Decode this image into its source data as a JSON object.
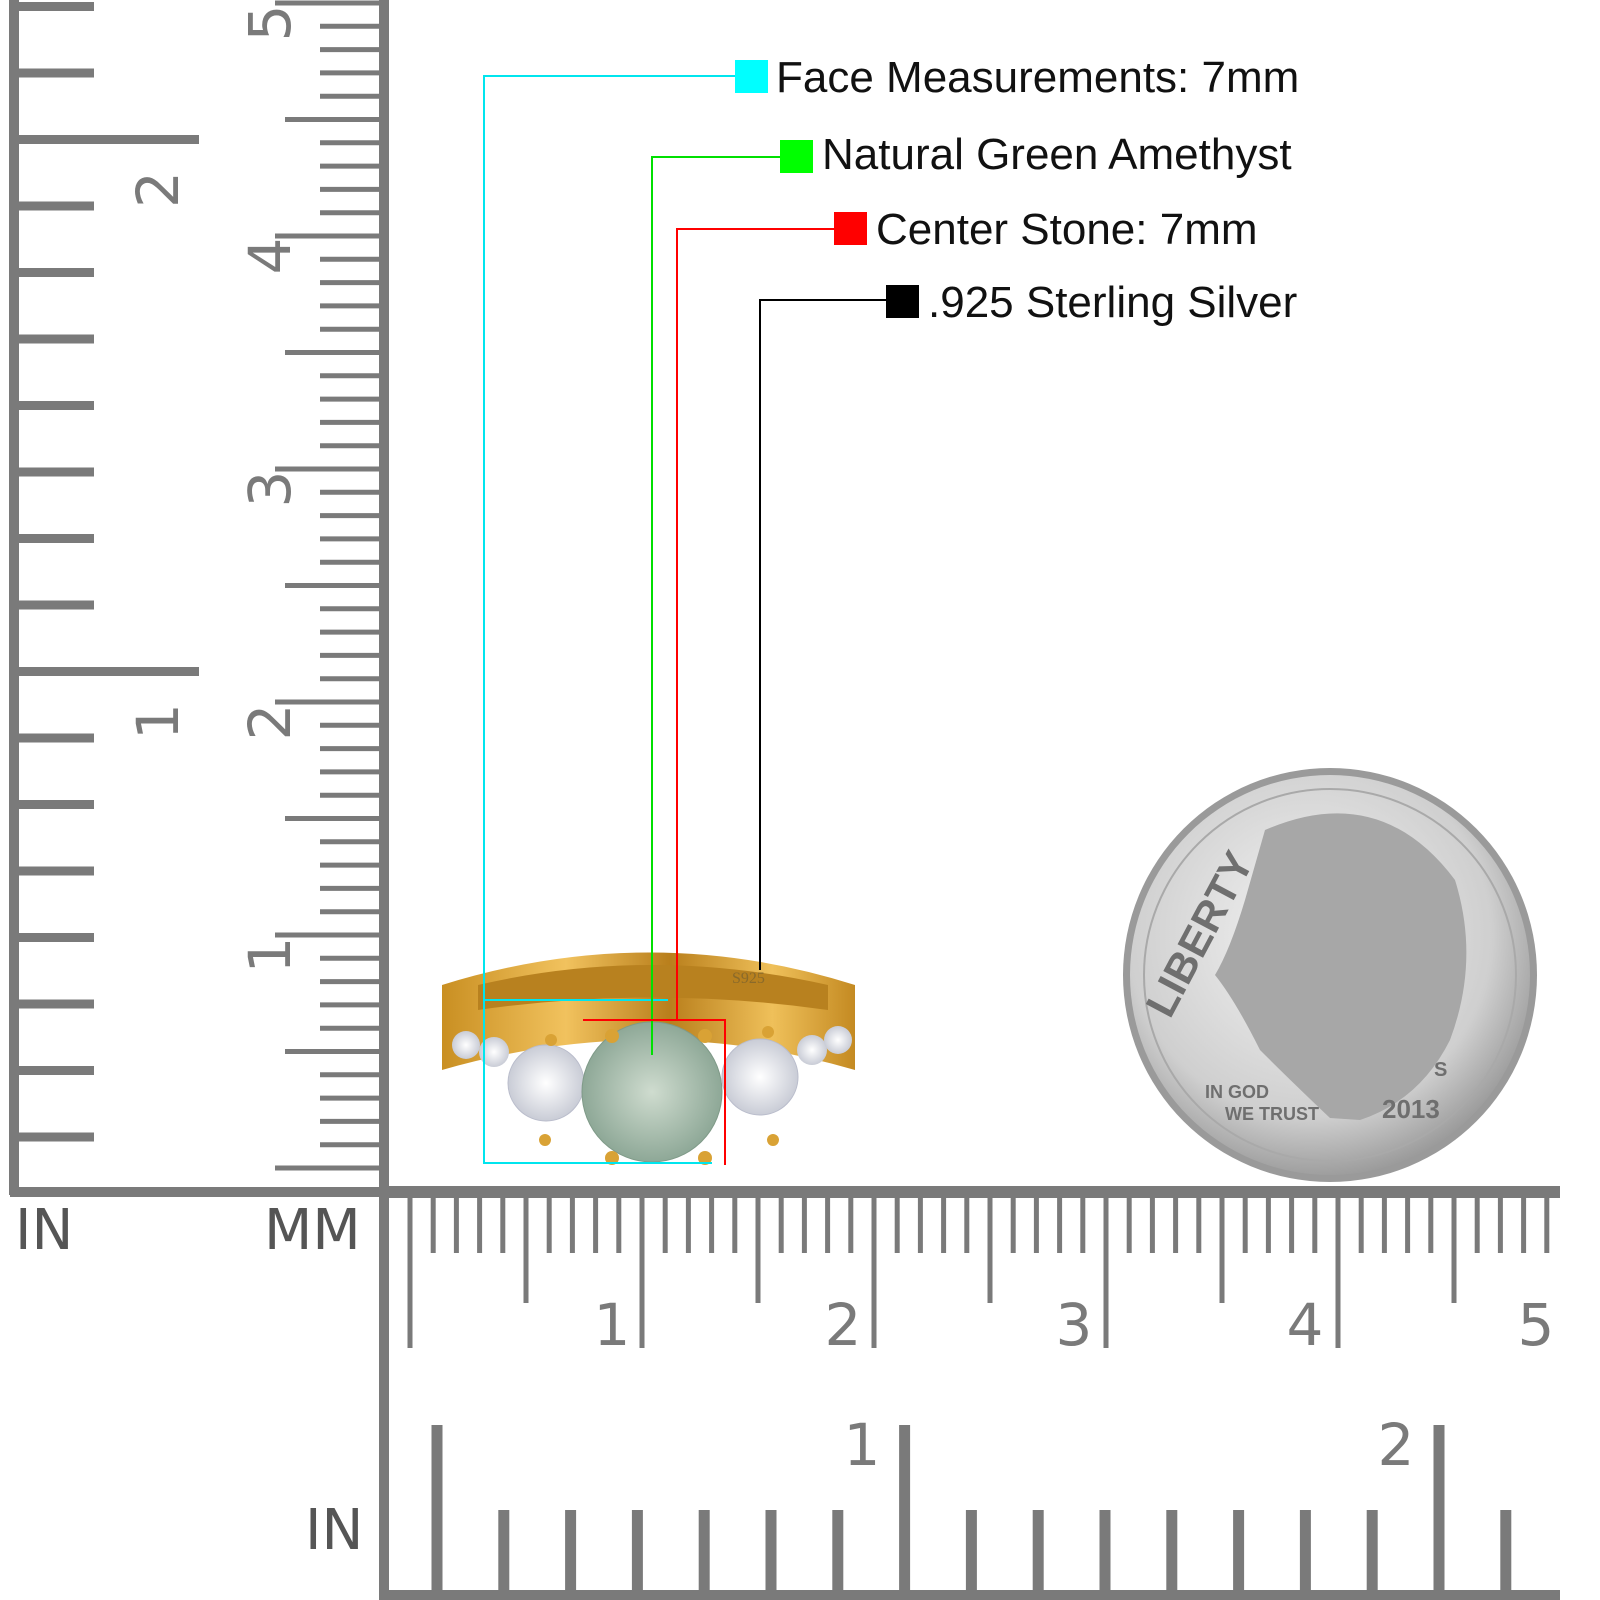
{
  "legend": [
    {
      "label": "Face Measurements: 7mm",
      "color": "#00ffff"
    },
    {
      "label": "Natural Green Amethyst",
      "color": "#00ff00"
    },
    {
      "label": "Center Stone: 7mm",
      "color": "#ff0000"
    },
    {
      "label": ".925 Sterling Silver",
      "color": "#000000"
    }
  ],
  "ruler": {
    "unit_in_top_left": "IN",
    "unit_mm": "MM",
    "unit_in_bottom": "IN",
    "vertical_cm_labels": [
      "1",
      "2",
      "3",
      "4",
      "5"
    ],
    "vertical_in_labels": [
      "1",
      "2"
    ],
    "horizontal_cm_labels": [
      "1",
      "2",
      "3",
      "4",
      "5"
    ],
    "horizontal_in_labels": [
      "1",
      "2"
    ],
    "color": "#7a7a7a"
  },
  "ring": {
    "stamp": "S925",
    "metal_color": "#e0a93a",
    "center_stone_color": "#a9bfae"
  },
  "coin": {
    "liberty": "LIBERTY",
    "motto_line1": "IN GOD",
    "motto_line2": "WE TRUST",
    "year": "2013",
    "mint_mark": "S"
  }
}
